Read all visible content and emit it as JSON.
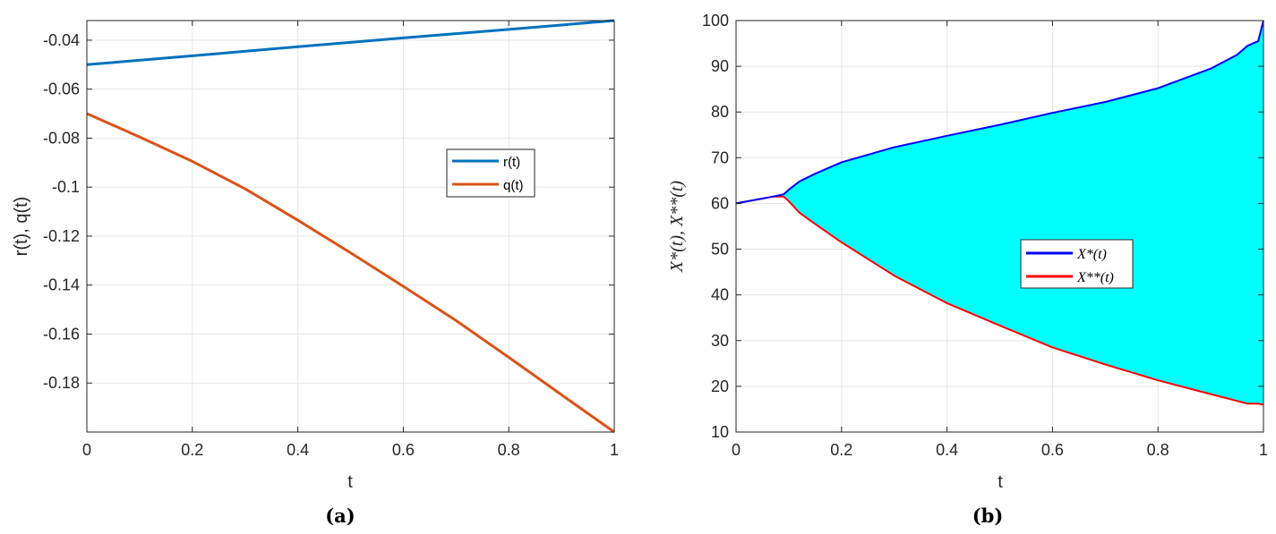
{
  "chart_data": [
    {
      "type": "line",
      "caption": "(a)",
      "xlabel": "t",
      "ylabel": "r(t), q(t)",
      "xlim": [
        0,
        1
      ],
      "ylim": [
        -0.2,
        -0.032
      ],
      "xticks": [
        "0",
        "0.2",
        "0.4",
        "0.6",
        "0.8",
        "1"
      ],
      "yticks": [
        "-0.04",
        "-0.06",
        "-0.08",
        "-0.1",
        "-0.12",
        "-0.14",
        "-0.16",
        "-0.18"
      ],
      "grid": true,
      "legend_position": "center-right",
      "series": [
        {
          "name": "r(t)",
          "color": "#0072BD",
          "x": [
            0,
            0.2,
            0.4,
            0.6,
            0.8,
            1
          ],
          "y": [
            -0.05,
            -0.0464,
            -0.0427,
            -0.0391,
            -0.0356,
            -0.032
          ]
        },
        {
          "name": "q(t)",
          "color": "#D95319",
          "x": [
            0,
            0.1,
            0.2,
            0.3,
            0.4,
            0.5,
            0.6,
            0.7,
            0.8,
            0.9,
            1
          ],
          "y": [
            -0.07,
            -0.0795,
            -0.0895,
            -0.1007,
            -0.1135,
            -0.1268,
            -0.1405,
            -0.1545,
            -0.1695,
            -0.1848,
            -0.2
          ]
        }
      ]
    },
    {
      "type": "area",
      "caption": "(b)",
      "xlabel": "t",
      "ylabel": "X*(t), X**(t)",
      "xlim": [
        0,
        1
      ],
      "ylim": [
        10,
        100
      ],
      "xticks": [
        "0",
        "0.2",
        "0.4",
        "0.6",
        "0.8",
        "1"
      ],
      "yticks": [
        "10",
        "20",
        "30",
        "40",
        "50",
        "60",
        "70",
        "80",
        "90",
        "100"
      ],
      "grid": true,
      "legend_position": "center",
      "fill_color": "#00FFFF",
      "series": [
        {
          "name": "X*(t)",
          "color": "#0000FF",
          "x": [
            0,
            0.07,
            0.09,
            0.1,
            0.12,
            0.15,
            0.2,
            0.3,
            0.4,
            0.5,
            0.6,
            0.7,
            0.8,
            0.9,
            0.95,
            0.97,
            0.99,
            1
          ],
          "y": [
            60,
            61.5,
            62,
            63,
            64.8,
            66.5,
            69,
            72.3,
            74.8,
            77.2,
            79.8,
            82.2,
            85.2,
            89.5,
            92.5,
            94.5,
            95.5,
            100
          ]
        },
        {
          "name": "X**(t)",
          "color": "#FF0000",
          "x": [
            0,
            0.07,
            0.09,
            0.1,
            0.12,
            0.15,
            0.2,
            0.3,
            0.4,
            0.5,
            0.6,
            0.7,
            0.8,
            0.9,
            0.95,
            0.97,
            0.99,
            1
          ],
          "y": [
            60,
            61.5,
            61.5,
            60.5,
            58,
            55.5,
            51.5,
            44.2,
            38.2,
            33.3,
            28.5,
            24.8,
            21.3,
            18.3,
            16.8,
            16.2,
            16.2,
            16
          ]
        }
      ]
    }
  ]
}
